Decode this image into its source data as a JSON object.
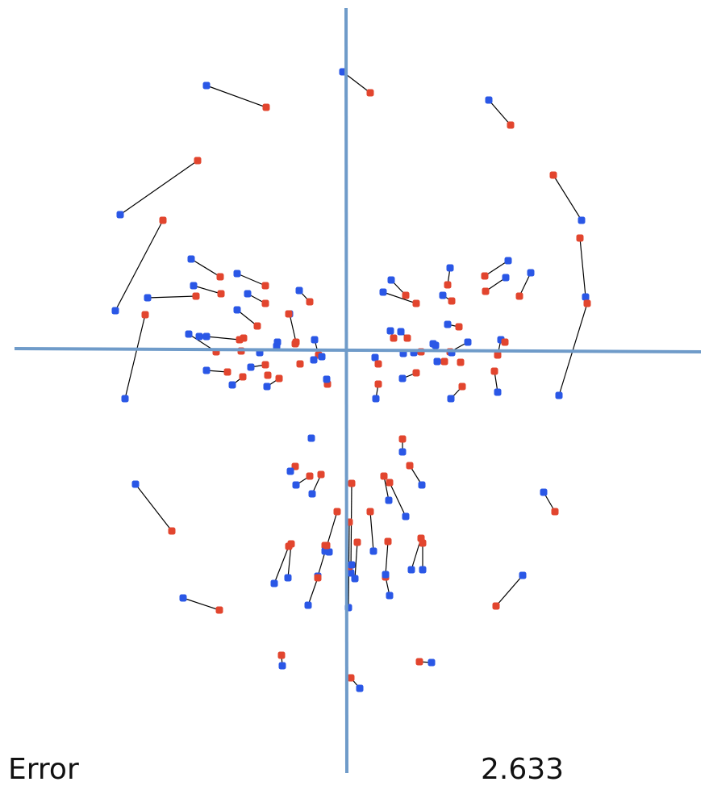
{
  "labels": {
    "error_label": "Error",
    "error_value": "2.633"
  },
  "colors": {
    "axis": "#6f9bc9",
    "source_point": "#2a57e6",
    "target_point": "#e2452e",
    "connector": "#000000"
  },
  "pairs": [
    {
      "blue": [
        425,
        89
      ],
      "red": [
        459,
        115
      ]
    },
    {
      "blue": [
        256,
        106
      ],
      "red": [
        330,
        133
      ]
    },
    {
      "blue": [
        606,
        124
      ],
      "red": [
        633,
        155
      ]
    },
    {
      "blue": [
        149,
        266
      ],
      "red": [
        245,
        199
      ]
    },
    {
      "blue": [
        721,
        273
      ],
      "red": [
        686,
        217
      ]
    },
    {
      "blue": [
        143,
        385
      ],
      "red": [
        202,
        273
      ]
    },
    {
      "blue": [
        726,
        368
      ],
      "red": [
        719,
        295
      ]
    },
    {
      "blue": [
        155,
        494
      ],
      "red": [
        180,
        390
      ]
    },
    {
      "blue": [
        693,
        490
      ],
      "red": [
        728,
        376
      ]
    },
    {
      "blue": [
        237,
        321
      ],
      "red": [
        273,
        343
      ]
    },
    {
      "blue": [
        294,
        339
      ],
      "red": [
        329,
        354
      ]
    },
    {
      "blue": [
        240,
        354
      ],
      "red": [
        274,
        364
      ]
    },
    {
      "blue": [
        183,
        369
      ],
      "red": [
        243,
        367
      ]
    },
    {
      "blue": [
        307,
        364
      ],
      "red": [
        329,
        376
      ]
    },
    {
      "blue": [
        294,
        384
      ],
      "red": [
        319,
        404
      ]
    },
    {
      "blue": [
        371,
        360
      ],
      "red": [
        384,
        374
      ]
    },
    {
      "blue": [
        359,
        389
      ],
      "red": [
        367,
        424
      ]
    },
    {
      "blue": [
        234,
        414
      ],
      "red": [
        268,
        436
      ]
    },
    {
      "blue": [
        256,
        417
      ],
      "red": [
        297,
        421
      ]
    },
    {
      "blue": [
        485,
        347
      ],
      "red": [
        503,
        366
      ]
    },
    {
      "blue": [
        475,
        362
      ],
      "red": [
        516,
        376
      ]
    },
    {
      "blue": [
        558,
        332
      ],
      "red": [
        555,
        353
      ]
    },
    {
      "blue": [
        549,
        366
      ],
      "red": [
        560,
        373
      ]
    },
    {
      "blue": [
        630,
        323
      ],
      "red": [
        601,
        342
      ]
    },
    {
      "blue": [
        627,
        344
      ],
      "red": [
        602,
        361
      ]
    },
    {
      "blue": [
        658,
        338
      ],
      "red": [
        644,
        367
      ]
    },
    {
      "blue": [
        555,
        402
      ],
      "red": [
        569,
        405
      ]
    },
    {
      "blue": [
        484,
        410
      ],
      "red": [
        488,
        419
      ]
    },
    {
      "blue": [
        497,
        411
      ],
      "red": [
        505,
        419
      ]
    },
    {
      "blue": [
        580,
        424
      ],
      "red": [
        558,
        436
      ]
    },
    {
      "blue": [
        621,
        421
      ],
      "red": [
        617,
        440
      ]
    },
    {
      "blue": [
        617,
        486
      ],
      "red": [
        613,
        460
      ]
    },
    {
      "blue": [
        559,
        494
      ],
      "red": [
        573,
        479
      ]
    },
    {
      "blue": [
        499,
        469
      ],
      "red": [
        516,
        462
      ]
    },
    {
      "blue": [
        466,
        494
      ],
      "red": [
        469,
        476
      ]
    },
    {
      "blue": [
        390,
        421
      ],
      "red": [
        395,
        440
      ]
    },
    {
      "blue": [
        405,
        470
      ],
      "red": [
        406,
        476
      ]
    },
    {
      "blue": [
        256,
        459
      ],
      "red": [
        282,
        461
      ]
    },
    {
      "blue": [
        288,
        477
      ],
      "red": [
        301,
        467
      ]
    },
    {
      "blue": [
        331,
        479
      ],
      "red": [
        346,
        469
      ]
    },
    {
      "blue": [
        311,
        455
      ],
      "red": [
        329,
        452
      ]
    },
    {
      "blue": [
        367,
        601
      ],
      "red": [
        384,
        590
      ]
    },
    {
      "blue": [
        387,
        612
      ],
      "red": [
        398,
        588
      ]
    },
    {
      "blue": [
        499,
        560
      ],
      "red": [
        499,
        544
      ]
    },
    {
      "blue": [
        523,
        601
      ],
      "red": [
        508,
        577
      ]
    },
    {
      "blue": [
        482,
        620
      ],
      "red": [
        476,
        590
      ]
    },
    {
      "blue": [
        503,
        640
      ],
      "red": [
        483,
        598
      ]
    },
    {
      "blue": [
        168,
        600
      ],
      "red": [
        213,
        658
      ]
    },
    {
      "blue": [
        674,
        610
      ],
      "red": [
        688,
        634
      ]
    },
    {
      "blue": [
        648,
        713
      ],
      "red": [
        615,
        751
      ]
    },
    {
      "blue": [
        227,
        741
      ],
      "red": [
        272,
        756
      ]
    },
    {
      "blue": [
        463,
        683
      ],
      "red": [
        459,
        634
      ]
    },
    {
      "blue": [
        340,
        723
      ],
      "red": [
        358,
        677
      ]
    },
    {
      "blue": [
        357,
        716
      ],
      "red": [
        361,
        674
      ]
    },
    {
      "blue": [
        403,
        683
      ],
      "red": [
        403,
        676
      ]
    },
    {
      "blue": [
        394,
        714
      ],
      "red": [
        418,
        634
      ]
    },
    {
      "blue": [
        382,
        750
      ],
      "red": [
        394,
        716
      ]
    },
    {
      "blue": [
        435,
        710
      ],
      "red": [
        436,
        599
      ]
    },
    {
      "blue": [
        440,
        717
      ],
      "red": [
        443,
        672
      ]
    },
    {
      "blue": [
        483,
        738
      ],
      "red": [
        478,
        715
      ]
    },
    {
      "blue": [
        478,
        712
      ],
      "red": [
        481,
        671
      ]
    },
    {
      "blue": [
        510,
        706
      ],
      "red": [
        522,
        667
      ]
    },
    {
      "blue": [
        524,
        706
      ],
      "red": [
        524,
        673
      ]
    },
    {
      "blue": [
        350,
        825
      ],
      "red": [
        349,
        812
      ]
    },
    {
      "blue": [
        535,
        821
      ],
      "red": [
        520,
        820
      ]
    },
    {
      "blue": [
        446,
        853
      ],
      "red": [
        435,
        840
      ]
    },
    {
      "blue": [
        432,
        753
      ],
      "red": [
        433,
        647
      ]
    }
  ],
  "loose_points": [
    {
      "c": "blue",
      "p": [
        386,
        543
      ]
    },
    {
      "c": "red",
      "p": [
        366,
        578
      ]
    },
    {
      "c": "blue",
      "p": [
        360,
        584
      ]
    },
    {
      "c": "red",
      "p": [
        332,
        465
      ]
    },
    {
      "c": "blue",
      "p": [
        322,
        437
      ]
    },
    {
      "c": "blue",
      "p": [
        343,
        429
      ]
    },
    {
      "c": "red",
      "p": [
        366,
        426
      ]
    },
    {
      "c": "blue",
      "p": [
        399,
        442
      ]
    },
    {
      "c": "red",
      "p": [
        372,
        451
      ]
    },
    {
      "c": "blue",
      "p": [
        389,
        446
      ]
    },
    {
      "c": "blue",
      "p": [
        247,
        417
      ]
    },
    {
      "c": "red",
      "p": [
        302,
        419
      ]
    },
    {
      "c": "blue",
      "p": [
        465,
        443
      ]
    },
    {
      "c": "red",
      "p": [
        469,
        451
      ]
    },
    {
      "c": "blue",
      "p": [
        500,
        438
      ]
    },
    {
      "c": "red",
      "p": [
        522,
        436
      ]
    },
    {
      "c": "blue",
      "p": [
        540,
        428
      ]
    },
    {
      "c": "blue",
      "p": [
        542,
        448
      ]
    },
    {
      "c": "red",
      "p": [
        551,
        448
      ]
    },
    {
      "c": "blue",
      "p": [
        560,
        437
      ]
    },
    {
      "c": "red",
      "p": [
        571,
        449
      ]
    },
    {
      "c": "blue",
      "p": [
        513,
        437
      ]
    },
    {
      "c": "red",
      "p": [
        626,
        424
      ]
    },
    {
      "c": "blue",
      "p": [
        537,
        426
      ]
    },
    {
      "c": "red",
      "p": [
        358,
        389
      ]
    },
    {
      "c": "red",
      "p": [
        299,
        435
      ]
    },
    {
      "c": "blue",
      "p": [
        344,
        424
      ]
    },
    {
      "c": "blue",
      "p": [
        408,
        684
      ]
    },
    {
      "c": "red",
      "p": [
        433,
        702
      ]
    },
    {
      "c": "blue",
      "p": [
        436,
        700
      ]
    },
    {
      "c": "red",
      "p": [
        405,
        676
      ]
    }
  ]
}
